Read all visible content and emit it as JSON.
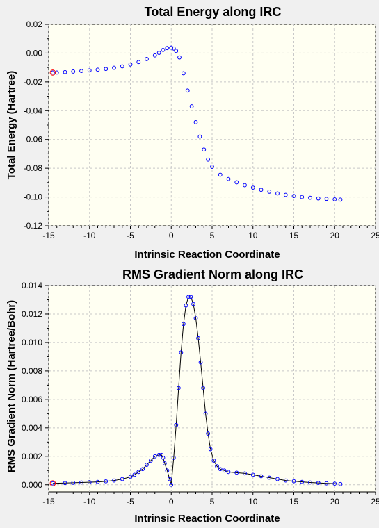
{
  "chart_data": [
    {
      "type": "scatter",
      "title": "Total Energy along IRC",
      "xlabel": "Intrinsic Reaction Coordinate",
      "ylabel": "Total Energy (Hartree)",
      "xlim": [
        -15,
        25
      ],
      "ylim": [
        -0.12,
        0.02
      ],
      "xticks": [
        -15,
        -10,
        -5,
        0,
        5,
        10,
        15,
        20,
        25
      ],
      "yticks": [
        -0.12,
        -0.1,
        -0.08,
        -0.06,
        -0.04,
        -0.02,
        0.0,
        0.02
      ],
      "ytick_labels": [
        "-0.12",
        "-0.10",
        "-0.08",
        "-0.06",
        "-0.04",
        "-0.02",
        "0.00",
        "0.02"
      ],
      "xtick_labels": [
        "-15",
        "-10",
        "-5",
        "0",
        "5",
        "10",
        "15",
        "20",
        "25"
      ],
      "grid": true,
      "connect_points": false,
      "marker": "open-circle",
      "marker_color": "#0000ff",
      "highlight_color": "#ff0000",
      "highlight_first_point": true,
      "series": [
        {
          "x": [
            -14.5,
            -14,
            -13,
            -12,
            -11,
            -10,
            -9,
            -8,
            -7,
            -6,
            -5,
            -4,
            -3,
            -2,
            -1.5,
            -1,
            -0.5,
            0,
            0.3,
            0.6,
            1,
            1.5,
            2,
            2.5,
            3,
            3.5,
            4,
            4.5,
            5,
            6,
            7,
            8,
            9,
            10,
            11,
            12,
            13,
            14,
            15,
            16,
            17,
            18,
            19,
            20,
            20.7
          ],
          "y": [
            -0.0135,
            -0.0135,
            -0.0132,
            -0.0128,
            -0.0124,
            -0.012,
            -0.0115,
            -0.011,
            -0.0102,
            -0.0092,
            -0.0079,
            -0.0062,
            -0.0041,
            -0.0016,
            0.0002,
            0.0022,
            0.0035,
            0.0038,
            0.0032,
            0.0015,
            -0.003,
            -0.014,
            -0.026,
            -0.037,
            -0.048,
            -0.058,
            -0.067,
            -0.074,
            -0.079,
            -0.0845,
            -0.0875,
            -0.0898,
            -0.0918,
            -0.0935,
            -0.095,
            -0.0963,
            -0.0975,
            -0.0985,
            -0.0993,
            -0.1,
            -0.1005,
            -0.101,
            -0.1013,
            -0.1016,
            -0.1018
          ]
        }
      ]
    },
    {
      "type": "line",
      "title": "RMS Gradient Norm along IRC",
      "xlabel": "Intrinsic Reaction Coordinate",
      "ylabel": "RMS Gradient Norm (Hartree/Bohr)",
      "xlim": [
        -15,
        25
      ],
      "ylim": [
        -0.0005,
        0.014
      ],
      "xticks": [
        -15,
        -10,
        -5,
        0,
        5,
        10,
        15,
        20,
        25
      ],
      "yticks": [
        0,
        0.002,
        0.004,
        0.006,
        0.008,
        0.01,
        0.012,
        0.014
      ],
      "ytick_labels": [
        "0.000",
        "0.002",
        "0.004",
        "0.006",
        "0.008",
        "0.010",
        "0.012",
        "0.014"
      ],
      "xtick_labels": [
        "-15",
        "-10",
        "-5",
        "0",
        "5",
        "10",
        "15",
        "20",
        "25"
      ],
      "grid": true,
      "connect_points": true,
      "marker": "open-circle",
      "marker_color": "#0000ff",
      "line_color": "#000000",
      "highlight_color": "#ff0000",
      "highlight_first_point": true,
      "series": [
        {
          "x": [
            -14.5,
            -13,
            -12,
            -11,
            -10,
            -9,
            -8,
            -7,
            -6,
            -5,
            -4.5,
            -4,
            -3.5,
            -3,
            -2.5,
            -2,
            -1.5,
            -1.2,
            -1,
            -0.8,
            -0.5,
            -0.2,
            0,
            0.3,
            0.6,
            0.9,
            1.2,
            1.5,
            1.8,
            2.1,
            2.4,
            2.7,
            3,
            3.3,
            3.6,
            3.9,
            4.2,
            4.5,
            4.8,
            5.2,
            5.6,
            6,
            6.5,
            7,
            8,
            9,
            10,
            11,
            12,
            13,
            14,
            15,
            16,
            17,
            18,
            19,
            20,
            20.7
          ],
          "y": [
            0.0001,
            0.00012,
            0.00014,
            0.00016,
            0.00018,
            0.0002,
            0.00024,
            0.0003,
            0.0004,
            0.00055,
            0.0007,
            0.0009,
            0.0011,
            0.0014,
            0.0017,
            0.002,
            0.0021,
            0.0021,
            0.0019,
            0.0015,
            0.001,
            0.0004,
            0.0,
            0.0019,
            0.0042,
            0.0068,
            0.0093,
            0.0113,
            0.0126,
            0.0132,
            0.0132,
            0.0127,
            0.0117,
            0.0103,
            0.0086,
            0.0068,
            0.005,
            0.0036,
            0.0025,
            0.0017,
            0.0013,
            0.0011,
            0.001,
            0.0009,
            0.00085,
            0.0008,
            0.0007,
            0.0006,
            0.0005,
            0.0004,
            0.0003,
            0.00025,
            0.0002,
            0.00016,
            0.00013,
            0.0001,
            8e-05,
            5e-05
          ]
        }
      ]
    }
  ]
}
